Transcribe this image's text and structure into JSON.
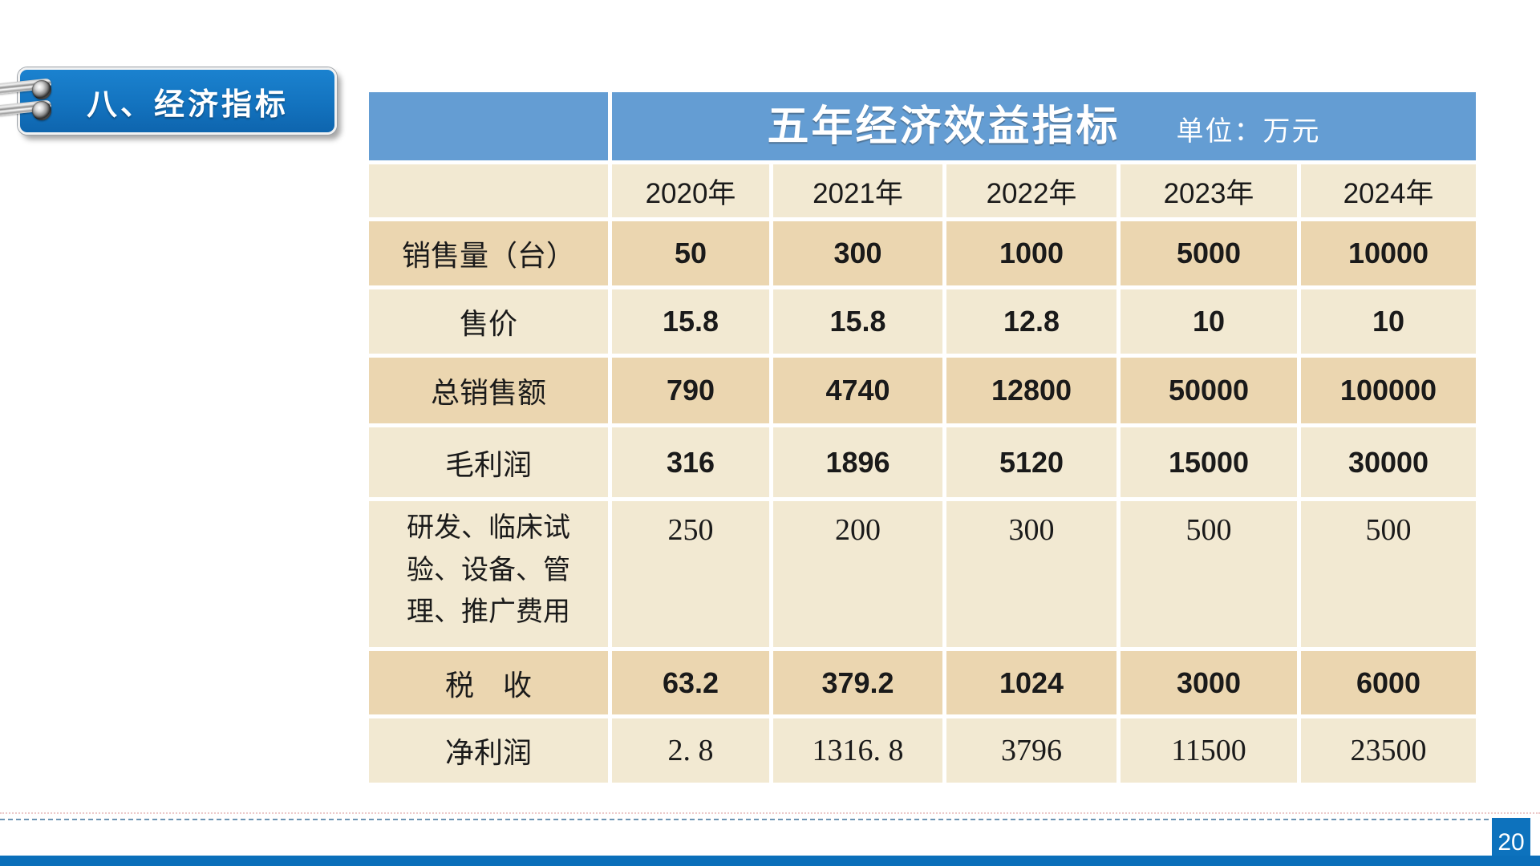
{
  "page": {
    "badge_label": "八、经济指标",
    "page_number": "20"
  },
  "table": {
    "title": "五年经济效益指标",
    "unit_label": "单位：万元",
    "year_headers": [
      "2020年",
      "2021年",
      "2022年",
      "2023年",
      "2024年"
    ],
    "rows": [
      {
        "label": "销售量（台）",
        "values": [
          "50",
          "300",
          "1000",
          "5000",
          "10000"
        ]
      },
      {
        "label": "售价",
        "values": [
          "15.8",
          "15.8",
          "12.8",
          "10",
          "10"
        ]
      },
      {
        "label": "总销售额",
        "values": [
          "790",
          "4740",
          "12800",
          "50000",
          "100000"
        ]
      },
      {
        "label": "毛利润",
        "values": [
          "316",
          "1896",
          "5120",
          "15000",
          "30000"
        ]
      },
      {
        "label": "研发、临床试\n验、设备、管\n理、推广费用",
        "values": [
          "250",
          "200",
          "300",
          "500",
          "500"
        ]
      },
      {
        "label": "税　收",
        "values": [
          "63.2",
          "379.2",
          "1024",
          "3000",
          "6000"
        ]
      },
      {
        "label": "净利润",
        "values": [
          "2. 8",
          "1316. 8",
          "3796",
          "11500",
          "23500"
        ]
      }
    ]
  },
  "colors": {
    "header_blue": "#649dd3",
    "row_tan": "#ebd6b0",
    "row_cream": "#f2e9d2",
    "badge_blue": "#1373bf",
    "footer_bar_blue": "#0b6fba",
    "dashed_line": "#6d95b4",
    "text": "#1a1a1a",
    "header_text": "#ffffff"
  }
}
